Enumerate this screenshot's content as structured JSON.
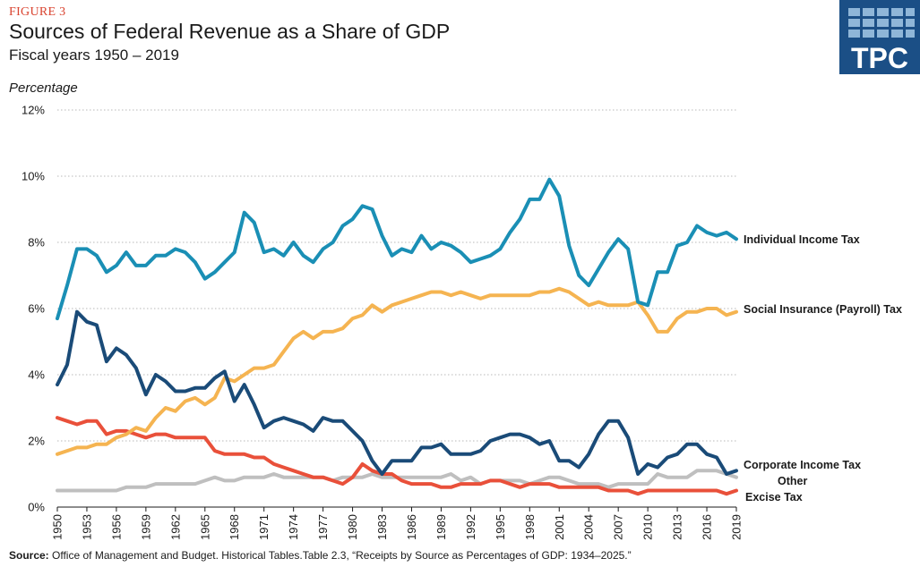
{
  "figure_label": "FIGURE 3",
  "title": "Sources of Federal Revenue as a Share of GDP",
  "subtitle": "Fiscal years 1950 – 2019",
  "ylabel": "Percentage",
  "logo": {
    "text": "TPC",
    "background": "#1b4f86"
  },
  "source": {
    "label": "Source:",
    "text": " Office of Management and Budget. Historical Tables.Table 2.3, “Receipts by Source as Percentages of GDP: 1934–2025.”"
  },
  "chart_data": {
    "type": "line",
    "ylim": [
      0,
      12
    ],
    "xlim": [
      1950,
      2019
    ],
    "y_ticks": [
      "0%",
      "2%",
      "4%",
      "6%",
      "8%",
      "10%",
      "12%"
    ],
    "x_ticks": [
      "1950",
      "1953",
      "1956",
      "1959",
      "1962",
      "1965",
      "1968",
      "1971",
      "1974",
      "1977",
      "1980",
      "1983",
      "1986",
      "1989",
      "1992",
      "1995",
      "1998",
      "2001",
      "2004",
      "2007",
      "2010",
      "2013",
      "2016",
      "2019"
    ],
    "grid": "horizontal dotted",
    "x": [
      1950,
      1951,
      1952,
      1953,
      1954,
      1955,
      1956,
      1957,
      1958,
      1959,
      1960,
      1961,
      1962,
      1963,
      1964,
      1965,
      1966,
      1967,
      1968,
      1969,
      1970,
      1971,
      1972,
      1973,
      1974,
      1975,
      1976,
      1977,
      1978,
      1979,
      1980,
      1981,
      1982,
      1983,
      1984,
      1985,
      1986,
      1987,
      1988,
      1989,
      1990,
      1991,
      1992,
      1993,
      1994,
      1995,
      1996,
      1997,
      1998,
      1999,
      2000,
      2001,
      2002,
      2003,
      2004,
      2005,
      2006,
      2007,
      2008,
      2009,
      2010,
      2011,
      2012,
      2013,
      2014,
      2015,
      2016,
      2017,
      2018,
      2019
    ],
    "series": [
      {
        "name": "Individual Income Tax",
        "color": "#1a8fb5",
        "values": [
          5.7,
          6.7,
          7.8,
          7.8,
          7.6,
          7.1,
          7.3,
          7.7,
          7.3,
          7.3,
          7.6,
          7.6,
          7.8,
          7.7,
          7.4,
          6.9,
          7.1,
          7.4,
          7.7,
          8.9,
          8.6,
          7.7,
          7.8,
          7.6,
          8.0,
          7.6,
          7.4,
          7.8,
          8.0,
          8.5,
          8.7,
          9.1,
          9.0,
          8.2,
          7.6,
          7.8,
          7.7,
          8.2,
          7.8,
          8.0,
          7.9,
          7.7,
          7.4,
          7.5,
          7.6,
          7.8,
          8.3,
          8.7,
          9.3,
          9.3,
          9.9,
          9.4,
          7.9,
          7.0,
          6.7,
          7.2,
          7.7,
          8.1,
          7.8,
          6.2,
          6.1,
          7.1,
          7.1,
          7.9,
          8.0,
          8.5,
          8.3,
          8.2,
          8.3,
          8.1
        ]
      },
      {
        "name": "Social Insurance (Payroll) Tax",
        "color": "#f5b451",
        "values": [
          1.6,
          1.7,
          1.8,
          1.8,
          1.9,
          1.9,
          2.1,
          2.2,
          2.4,
          2.3,
          2.7,
          3.0,
          2.9,
          3.2,
          3.3,
          3.1,
          3.3,
          3.9,
          3.8,
          4.0,
          4.2,
          4.2,
          4.3,
          4.7,
          5.1,
          5.3,
          5.1,
          5.3,
          5.3,
          5.4,
          5.7,
          5.8,
          6.1,
          5.9,
          6.1,
          6.2,
          6.3,
          6.4,
          6.5,
          6.5,
          6.4,
          6.5,
          6.4,
          6.3,
          6.4,
          6.4,
          6.4,
          6.4,
          6.4,
          6.5,
          6.5,
          6.6,
          6.5,
          6.3,
          6.1,
          6.2,
          6.1,
          6.1,
          6.1,
          6.2,
          5.8,
          5.3,
          5.3,
          5.7,
          5.9,
          5.9,
          6.0,
          6.0,
          5.8,
          5.9
        ]
      },
      {
        "name": "Corporate Income Tax",
        "color": "#1a4b78",
        "values": [
          3.7,
          4.3,
          5.9,
          5.6,
          5.5,
          4.4,
          4.8,
          4.6,
          4.2,
          3.4,
          4.0,
          3.8,
          3.5,
          3.5,
          3.6,
          3.6,
          3.9,
          4.1,
          3.2,
          3.7,
          3.1,
          2.4,
          2.6,
          2.7,
          2.6,
          2.5,
          2.3,
          2.7,
          2.6,
          2.6,
          2.3,
          2.0,
          1.4,
          1.0,
          1.4,
          1.4,
          1.4,
          1.8,
          1.8,
          1.9,
          1.6,
          1.6,
          1.6,
          1.7,
          2.0,
          2.1,
          2.2,
          2.2,
          2.1,
          1.9,
          2.0,
          1.4,
          1.4,
          1.2,
          1.6,
          2.2,
          2.6,
          2.6,
          2.1,
          1.0,
          1.3,
          1.2,
          1.5,
          1.6,
          1.9,
          1.9,
          1.6,
          1.5,
          1.0,
          1.1
        ]
      },
      {
        "name": "Other",
        "color": "#bfbfbf",
        "values": [
          0.5,
          0.5,
          0.5,
          0.5,
          0.5,
          0.5,
          0.5,
          0.6,
          0.6,
          0.6,
          0.7,
          0.7,
          0.7,
          0.7,
          0.7,
          0.8,
          0.9,
          0.8,
          0.8,
          0.9,
          0.9,
          0.9,
          1.0,
          0.9,
          0.9,
          0.9,
          0.9,
          0.9,
          0.8,
          0.9,
          0.9,
          0.9,
          1.0,
          0.9,
          0.9,
          0.9,
          0.9,
          0.9,
          0.9,
          0.9,
          1.0,
          0.8,
          0.9,
          0.7,
          0.8,
          0.8,
          0.8,
          0.8,
          0.7,
          0.8,
          0.9,
          0.9,
          0.8,
          0.7,
          0.7,
          0.7,
          0.6,
          0.7,
          0.7,
          0.7,
          0.7,
          1.0,
          0.9,
          0.9,
          0.9,
          1.1,
          1.1,
          1.1,
          1.0,
          0.9
        ]
      },
      {
        "name": "Excise Tax",
        "color": "#e9503a",
        "values": [
          2.7,
          2.6,
          2.5,
          2.6,
          2.6,
          2.2,
          2.3,
          2.3,
          2.2,
          2.1,
          2.2,
          2.2,
          2.1,
          2.1,
          2.1,
          2.1,
          1.7,
          1.6,
          1.6,
          1.6,
          1.5,
          1.5,
          1.3,
          1.2,
          1.1,
          1.0,
          0.9,
          0.9,
          0.8,
          0.7,
          0.9,
          1.3,
          1.1,
          1.0,
          1.0,
          0.8,
          0.7,
          0.7,
          0.7,
          0.6,
          0.6,
          0.7,
          0.7,
          0.7,
          0.8,
          0.8,
          0.7,
          0.6,
          0.7,
          0.7,
          0.7,
          0.6,
          0.6,
          0.6,
          0.6,
          0.6,
          0.5,
          0.5,
          0.5,
          0.4,
          0.5,
          0.5,
          0.5,
          0.5,
          0.5,
          0.5,
          0.5,
          0.5,
          0.4,
          0.5
        ]
      }
    ]
  }
}
